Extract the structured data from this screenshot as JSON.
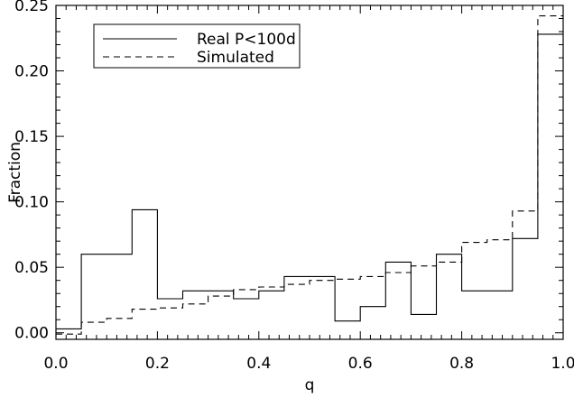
{
  "chart_data": {
    "type": "line",
    "subtype": "step-histogram",
    "title": "",
    "xlabel": "q",
    "ylabel": "Fraction",
    "xlim": [
      0.0,
      1.0
    ],
    "ylim": [
      -0.005,
      0.25
    ],
    "x_ticks": [
      0.0,
      0.2,
      0.4,
      0.6,
      0.8,
      1.0
    ],
    "x_tick_labels": [
      "0.0",
      "0.2",
      "0.4",
      "0.6",
      "0.8",
      "1.0"
    ],
    "y_ticks": [
      0.0,
      0.05,
      0.1,
      0.15,
      0.2,
      0.25
    ],
    "y_tick_labels": [
      "0.00",
      "0.05",
      "0.10",
      "0.15",
      "0.20",
      "0.25"
    ],
    "grid": false,
    "legend_position": "top-left",
    "bin_edges": [
      0.0,
      0.05,
      0.1,
      0.15,
      0.2,
      0.25,
      0.3,
      0.35,
      0.4,
      0.45,
      0.5,
      0.55,
      0.6,
      0.65,
      0.7,
      0.75,
      0.8,
      0.85,
      0.9,
      0.95,
      1.0
    ],
    "series": [
      {
        "name": "Real P<100d",
        "line_style": "solid",
        "values": [
          0.003,
          0.06,
          0.06,
          0.094,
          0.026,
          0.032,
          0.032,
          0.026,
          0.032,
          0.043,
          0.043,
          0.009,
          0.02,
          0.054,
          0.014,
          0.06,
          0.032,
          0.032,
          0.072,
          0.228
        ]
      },
      {
        "name": "Simulated",
        "line_style": "dashed",
        "values": [
          -0.001,
          0.008,
          0.011,
          0.018,
          0.019,
          0.022,
          0.028,
          0.033,
          0.035,
          0.037,
          0.04,
          0.041,
          0.043,
          0.046,
          0.051,
          0.054,
          0.069,
          0.071,
          0.093,
          0.242
        ]
      }
    ]
  }
}
